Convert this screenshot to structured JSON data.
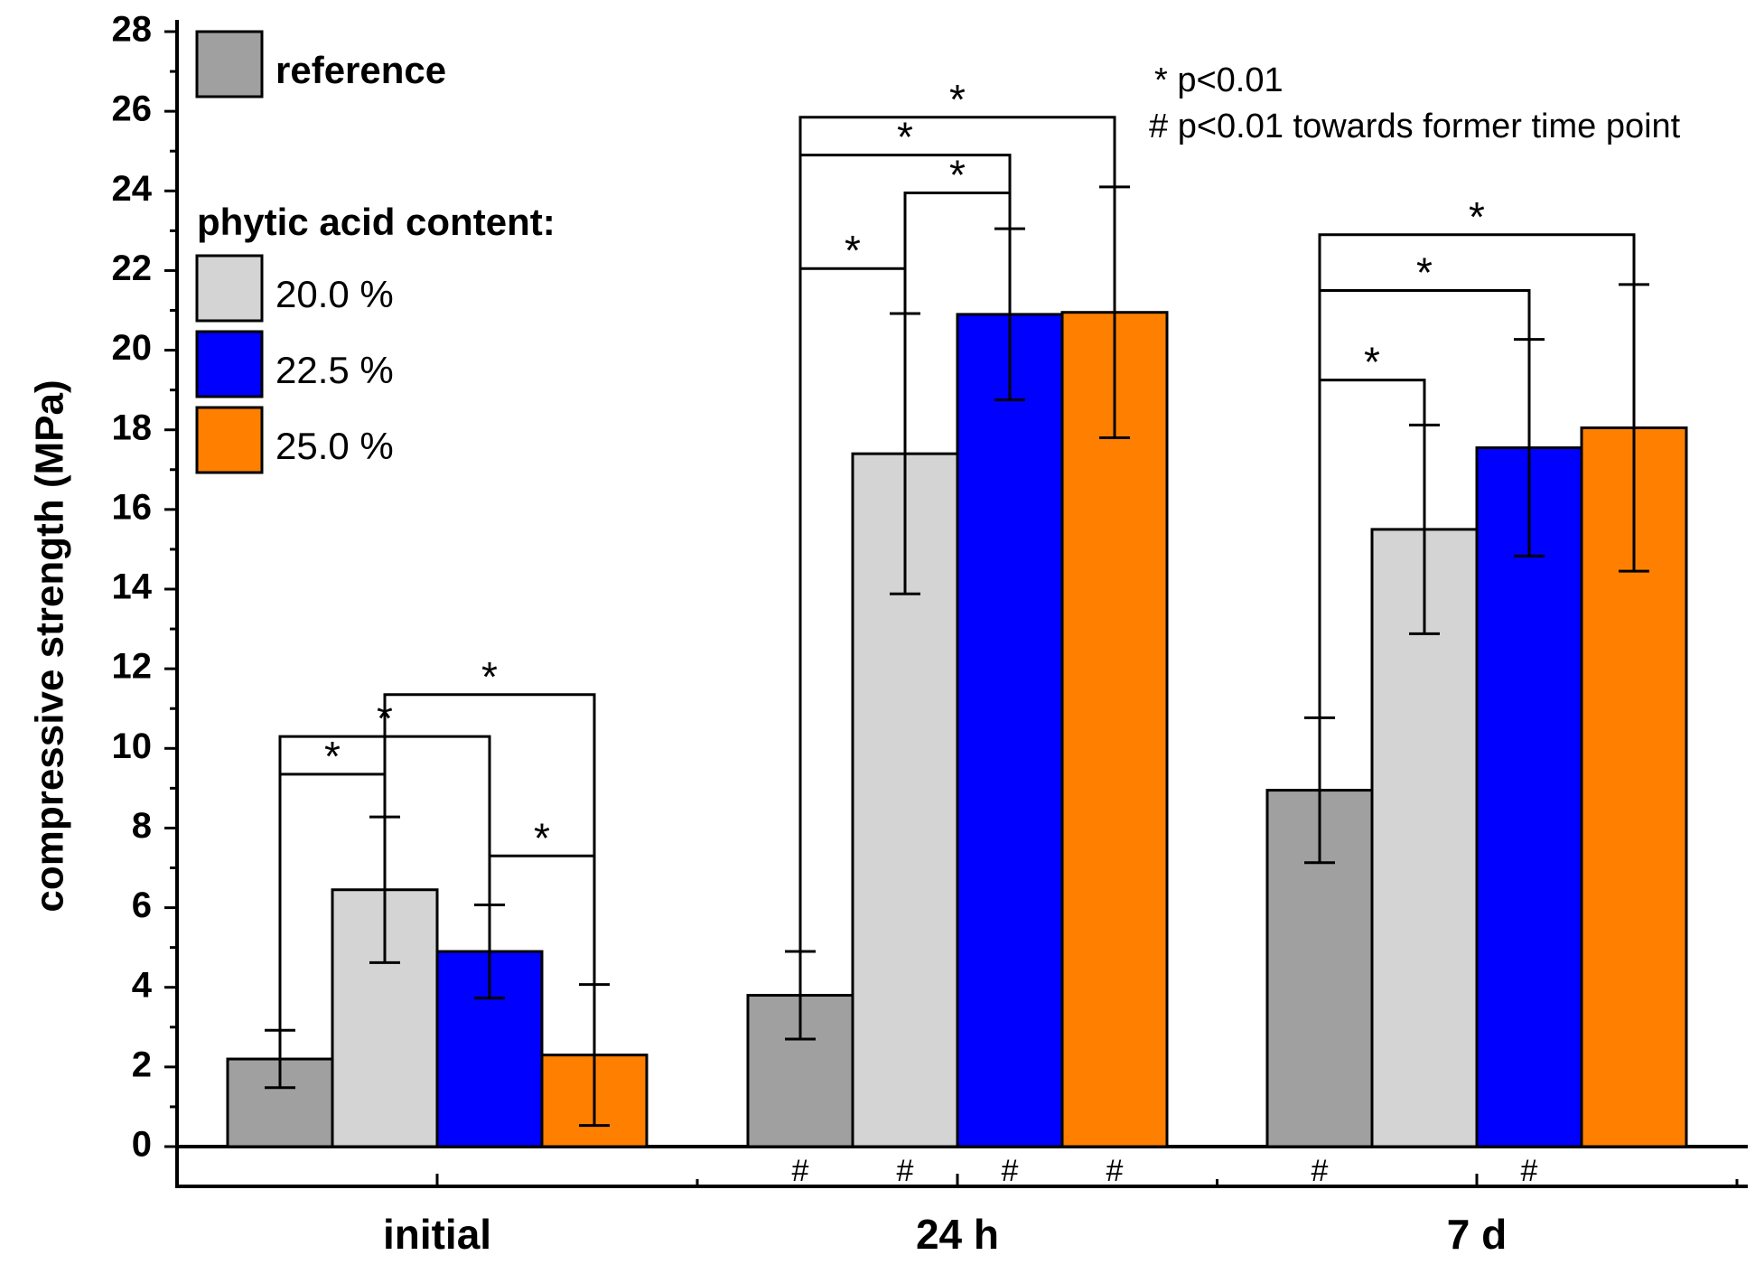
{
  "chart_data": {
    "type": "bar",
    "title": "",
    "xlabel": "",
    "ylabel": "compressive strength (MPa)",
    "ylim": [
      0,
      28
    ],
    "y_ticks": [
      "0",
      "2",
      "4",
      "6",
      "8",
      "10",
      "12",
      "14",
      "16",
      "18",
      "20",
      "22",
      "24",
      "26",
      "28"
    ],
    "categories": [
      "initial",
      "24 h",
      "7 d"
    ],
    "series": [
      {
        "name": "reference",
        "color": "#a0a0a0",
        "values": [
          2.2,
          3.8,
          8.95
        ],
        "errors": [
          0.72,
          1.1,
          1.82
        ]
      },
      {
        "name": "20.0 %",
        "color": "#d4d4d4",
        "values": [
          6.45,
          17.4,
          15.5
        ],
        "errors": [
          1.83,
          3.52,
          2.62
        ]
      },
      {
        "name": "22.5 %",
        "color": "#0000ff",
        "values": [
          4.9,
          20.9,
          17.55
        ],
        "errors": [
          1.17,
          2.15,
          2.72
        ]
      },
      {
        "name": "25.0 %",
        "color": "#ff8000",
        "values": [
          2.3,
          20.95,
          18.05
        ],
        "errors": [
          1.77,
          3.15,
          3.6
        ]
      }
    ],
    "legend": {
      "reference_label": "reference",
      "title": "phytic acid content:",
      "items": [
        "20.0 %",
        "22.5 %",
        "25.0 %"
      ],
      "placement": "top-left"
    },
    "notes": [
      "* p<0.01",
      "# p<0.01 towards former time point"
    ],
    "significance": {
      "symbol": "*",
      "brackets": [
        {
          "group": 0,
          "from": 0,
          "to": 1,
          "level": 9.35
        },
        {
          "group": 0,
          "from": 0,
          "to": 2,
          "level": 10.3
        },
        {
          "group": 0,
          "from": 1,
          "to": 3,
          "level": 11.35
        },
        {
          "group": 0,
          "from": 2,
          "to": 3,
          "level": 7.3
        },
        {
          "group": 1,
          "from": 0,
          "to": 1,
          "level": 22.05
        },
        {
          "group": 1,
          "from": 1,
          "to": 2,
          "level": 23.95
        },
        {
          "group": 1,
          "from": 0,
          "to": 2,
          "level": 24.9
        },
        {
          "group": 1,
          "from": 0,
          "to": 3,
          "level": 25.85
        },
        {
          "group": 2,
          "from": 0,
          "to": 1,
          "level": 19.25
        },
        {
          "group": 2,
          "from": 0,
          "to": 2,
          "level": 21.5
        },
        {
          "group": 2,
          "from": 0,
          "to": 3,
          "level": 22.9
        }
      ]
    },
    "time_markers": {
      "symbol": "#",
      "positions": [
        {
          "group": 1,
          "bar": 0
        },
        {
          "group": 1,
          "bar": 1
        },
        {
          "group": 1,
          "bar": 2
        },
        {
          "group": 1,
          "bar": 3
        },
        {
          "group": 2,
          "bar": 0
        },
        {
          "group": 2,
          "bar": 2
        }
      ]
    }
  }
}
